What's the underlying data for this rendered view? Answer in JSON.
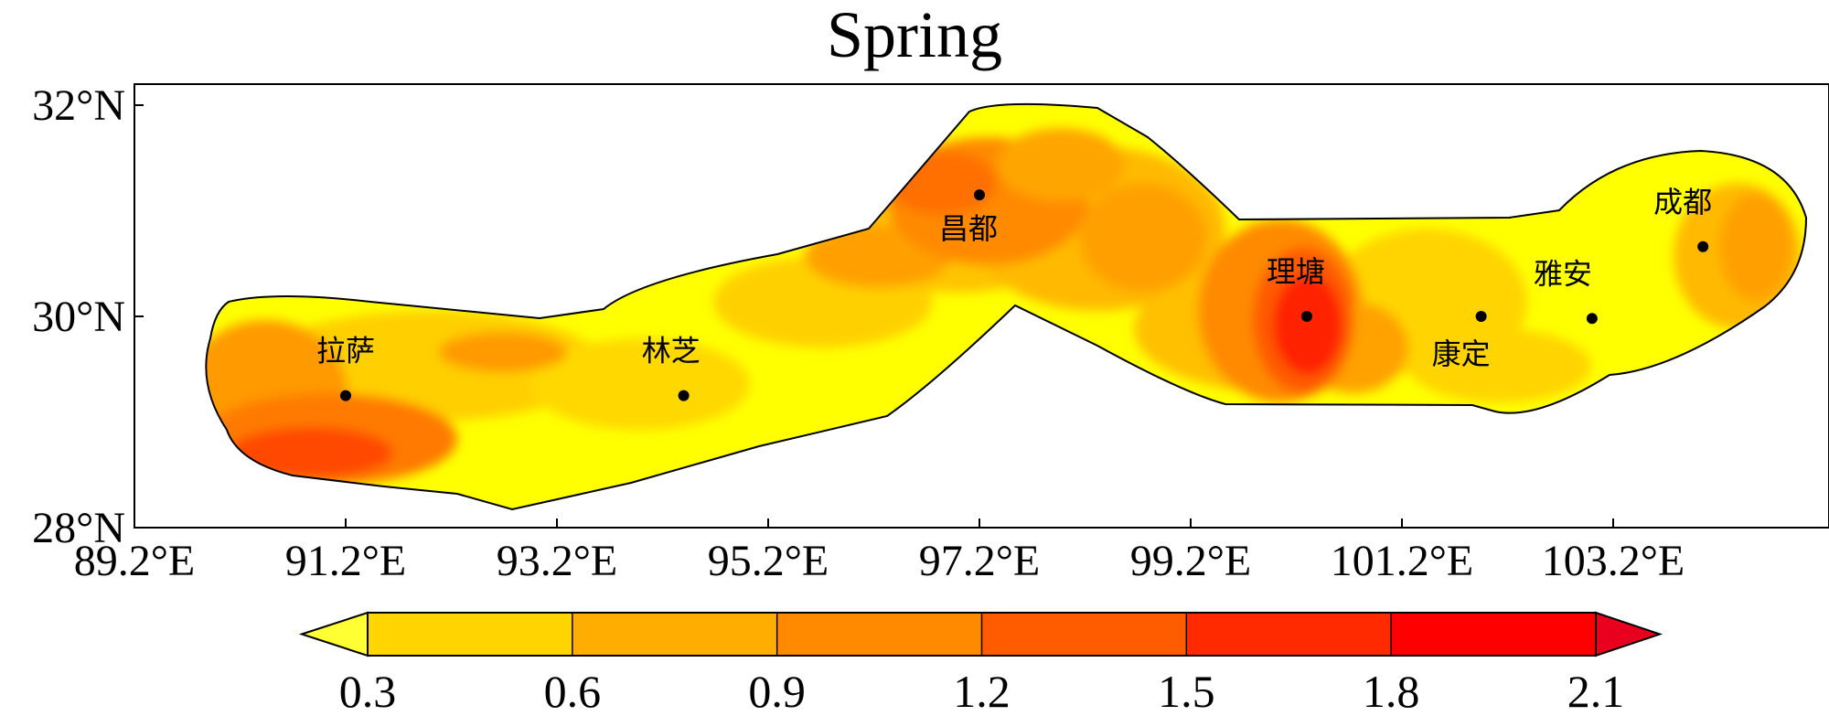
{
  "title": "Spring",
  "map": {
    "lon_ticks": [
      "89.2°E",
      "91.2°E",
      "93.2°E",
      "95.2°E",
      "97.2°E",
      "99.2°E",
      "101.2°E",
      "103.2°E"
    ],
    "lat_ticks": [
      "28°N",
      "30°N",
      "32°N"
    ],
    "lon_range": [
      89.2,
      105.0
    ],
    "lat_range": [
      28.0,
      32.2
    ],
    "cities": [
      {
        "name": "拉萨",
        "lon": 91.2,
        "lat": 29.25
      },
      {
        "name": "林芝",
        "lon": 94.4,
        "lat": 29.25
      },
      {
        "name": "昌都",
        "lon": 97.2,
        "lat": 31.15
      },
      {
        "name": "理塘",
        "lon": 100.3,
        "lat": 30.0
      },
      {
        "name": "康定",
        "lon": 101.95,
        "lat": 30.0
      },
      {
        "name": "雅安",
        "lon": 103.0,
        "lat": 29.98
      },
      {
        "name": "成都",
        "lon": 104.05,
        "lat": 30.66
      }
    ]
  },
  "colorbar": {
    "ticks": [
      "0.3",
      "0.6",
      "0.9",
      "1.2",
      "1.5",
      "1.8",
      "2.1"
    ],
    "colors": [
      "#ffff33",
      "#ffd400",
      "#ffad00",
      "#ff8a00",
      "#ff5c00",
      "#ff2a00",
      "#ff0000",
      "#e8001e"
    ]
  }
}
